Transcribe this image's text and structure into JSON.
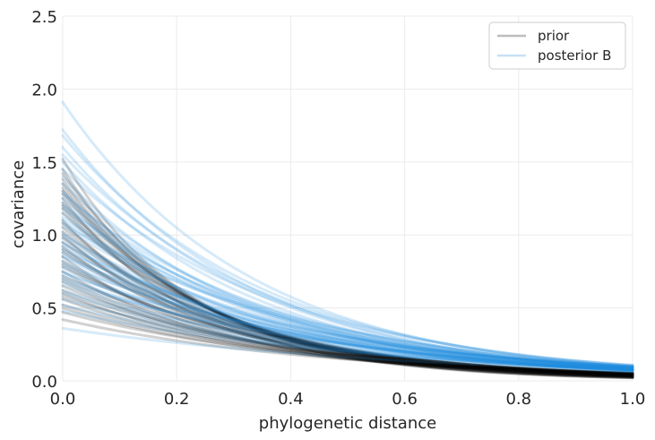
{
  "chart_data": {
    "type": "line",
    "title": "",
    "xlabel": "phylogenetic distance",
    "ylabel": "covariance",
    "xlim": [
      0.0,
      1.0
    ],
    "ylim": [
      0.0,
      2.5
    ],
    "xticks": [
      0.0,
      0.2,
      0.4,
      0.6,
      0.8,
      1.0
    ],
    "xtick_labels": [
      "0.0",
      "0.2",
      "0.4",
      "0.6",
      "0.8",
      "1.0"
    ],
    "yticks": [
      0.0,
      0.5,
      1.0,
      1.5,
      2.0,
      2.5
    ],
    "ytick_labels": [
      "0.0",
      "0.5",
      "1.0",
      "1.5",
      "2.0",
      "2.5"
    ],
    "grid": true,
    "legend_position": "top-right",
    "model": "covariance = eta_sq * exp(-rho * distance)",
    "series": [
      {
        "name": "prior",
        "color": "#000000",
        "alpha": 0.18,
        "curves": [
          {
            "eta_sq": 1.38,
            "rho": 4.0
          },
          {
            "eta_sq": 1.3,
            "rho": 3.7
          },
          {
            "eta_sq": 1.22,
            "rho": 3.5
          },
          {
            "eta_sq": 1.45,
            "rho": 4.2
          },
          {
            "eta_sq": 1.15,
            "rho": 3.3
          },
          {
            "eta_sq": 1.05,
            "rho": 3.2
          },
          {
            "eta_sq": 0.95,
            "rho": 3.0
          },
          {
            "eta_sq": 0.88,
            "rho": 2.9
          },
          {
            "eta_sq": 0.8,
            "rho": 2.8
          },
          {
            "eta_sq": 0.72,
            "rho": 2.6
          },
          {
            "eta_sq": 0.62,
            "rho": 2.5
          },
          {
            "eta_sq": 0.58,
            "rho": 2.4
          },
          {
            "eta_sq": 0.52,
            "rho": 2.3
          },
          {
            "eta_sq": 0.47,
            "rho": 2.2
          },
          {
            "eta_sq": 0.42,
            "rho": 2.1
          },
          {
            "eta_sq": 1.25,
            "rho": 4.1
          },
          {
            "eta_sq": 1.1,
            "rho": 3.8
          },
          {
            "eta_sq": 1.0,
            "rho": 3.6
          },
          {
            "eta_sq": 0.85,
            "rho": 3.4
          },
          {
            "eta_sq": 0.75,
            "rho": 3.1
          },
          {
            "eta_sq": 0.68,
            "rho": 2.9
          },
          {
            "eta_sq": 0.6,
            "rho": 2.7
          },
          {
            "eta_sq": 1.35,
            "rho": 3.9
          },
          {
            "eta_sq": 1.18,
            "rho": 3.6
          },
          {
            "eta_sq": 0.92,
            "rho": 3.3
          },
          {
            "eta_sq": 1.52,
            "rho": 4.3
          },
          {
            "eta_sq": 1.42,
            "rho": 4.0
          },
          {
            "eta_sq": 1.28,
            "rho": 3.7
          },
          {
            "eta_sq": 1.08,
            "rho": 3.4
          },
          {
            "eta_sq": 0.98,
            "rho": 3.2
          },
          {
            "eta_sq": 0.82,
            "rho": 3.0
          },
          {
            "eta_sq": 0.7,
            "rho": 2.8
          },
          {
            "eta_sq": 0.56,
            "rho": 2.6
          },
          {
            "eta_sq": 0.5,
            "rho": 2.4
          },
          {
            "eta_sq": 1.2,
            "rho": 3.5
          },
          {
            "eta_sq": 1.02,
            "rho": 3.1
          },
          {
            "eta_sq": 0.9,
            "rho": 2.9
          },
          {
            "eta_sq": 0.78,
            "rho": 2.7
          },
          {
            "eta_sq": 0.65,
            "rho": 2.6
          },
          {
            "eta_sq": 1.32,
            "rho": 3.8
          }
        ]
      },
      {
        "name": "posterior B",
        "color": "#1c88e0",
        "alpha": 0.18,
        "curves": [
          {
            "eta_sq": 1.91,
            "rho": 3.0
          },
          {
            "eta_sq": 1.72,
            "rho": 3.0
          },
          {
            "eta_sq": 1.68,
            "rho": 2.8
          },
          {
            "eta_sq": 1.6,
            "rho": 2.9
          },
          {
            "eta_sq": 1.55,
            "rho": 2.7
          },
          {
            "eta_sq": 1.5,
            "rho": 2.9
          },
          {
            "eta_sq": 1.45,
            "rho": 2.6
          },
          {
            "eta_sq": 1.4,
            "rho": 3.0
          },
          {
            "eta_sq": 1.35,
            "rho": 2.8
          },
          {
            "eta_sq": 1.3,
            "rho": 2.9
          },
          {
            "eta_sq": 1.25,
            "rho": 2.7
          },
          {
            "eta_sq": 1.22,
            "rho": 2.8
          },
          {
            "eta_sq": 1.18,
            "rho": 2.6
          },
          {
            "eta_sq": 1.15,
            "rho": 2.9
          },
          {
            "eta_sq": 1.1,
            "rho": 2.7
          },
          {
            "eta_sq": 1.06,
            "rho": 2.5
          },
          {
            "eta_sq": 1.02,
            "rho": 2.8
          },
          {
            "eta_sq": 0.98,
            "rho": 2.6
          },
          {
            "eta_sq": 0.95,
            "rho": 2.5
          },
          {
            "eta_sq": 0.92,
            "rho": 2.6
          },
          {
            "eta_sq": 0.88,
            "rho": 2.5
          },
          {
            "eta_sq": 0.85,
            "rho": 2.4
          },
          {
            "eta_sq": 0.82,
            "rho": 2.3
          },
          {
            "eta_sq": 0.78,
            "rho": 2.3
          },
          {
            "eta_sq": 0.75,
            "rho": 2.2
          },
          {
            "eta_sq": 0.72,
            "rho": 2.3
          },
          {
            "eta_sq": 0.7,
            "rho": 2.1
          },
          {
            "eta_sq": 0.66,
            "rho": 2.2
          },
          {
            "eta_sq": 0.62,
            "rho": 2.0
          },
          {
            "eta_sq": 0.6,
            "rho": 2.1
          },
          {
            "eta_sq": 0.56,
            "rho": 2.0
          },
          {
            "eta_sq": 0.52,
            "rho": 1.9
          },
          {
            "eta_sq": 0.48,
            "rho": 1.8
          },
          {
            "eta_sq": 0.36,
            "rho": 1.6
          },
          {
            "eta_sq": 1.28,
            "rho": 2.6
          },
          {
            "eta_sq": 1.12,
            "rho": 2.5
          },
          {
            "eta_sq": 1.0,
            "rho": 2.4
          },
          {
            "eta_sq": 0.9,
            "rho": 2.2
          },
          {
            "eta_sq": 0.8,
            "rho": 2.1
          },
          {
            "eta_sq": 0.68,
            "rho": 2.0
          },
          {
            "eta_sq": 1.2,
            "rho": 2.5
          },
          {
            "eta_sq": 1.08,
            "rho": 2.3
          },
          {
            "eta_sq": 0.94,
            "rho": 2.3
          },
          {
            "eta_sq": 0.86,
            "rho": 2.2
          },
          {
            "eta_sq": 0.74,
            "rho": 2.0
          }
        ]
      }
    ],
    "legend": [
      {
        "label": "prior",
        "color": "#bdbdbd"
      },
      {
        "label": "posterior B",
        "color": "#c7e0f6"
      }
    ]
  }
}
